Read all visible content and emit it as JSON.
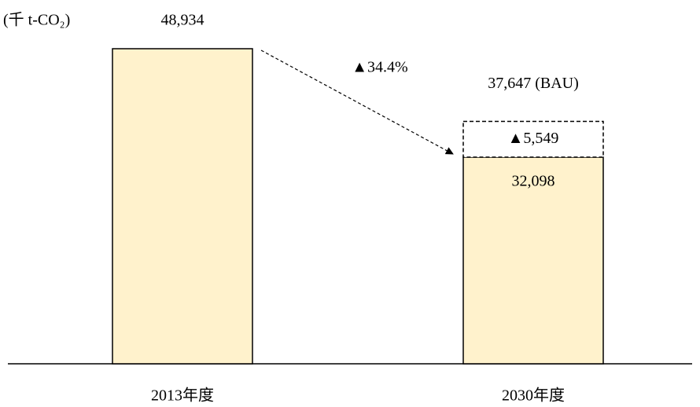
{
  "chart_data": {
    "type": "stacked_bar",
    "unit_label": "(千 t-CO₂)",
    "categories": [
      "2013年度",
      "2030年度"
    ],
    "series": [
      {
        "color": "#fff2cc",
        "values": [
          48934,
          32098
        ],
        "value_labels": [
          "48,934",
          "32,098"
        ]
      },
      {
        "color": "#ffffff",
        "dashed": true,
        "values": [
          null,
          5549
        ],
        "value_labels": [
          null,
          "▲5,549"
        ]
      }
    ],
    "annotations": {
      "bau": "37,647 (BAU)",
      "change": "▲34.4%"
    }
  }
}
